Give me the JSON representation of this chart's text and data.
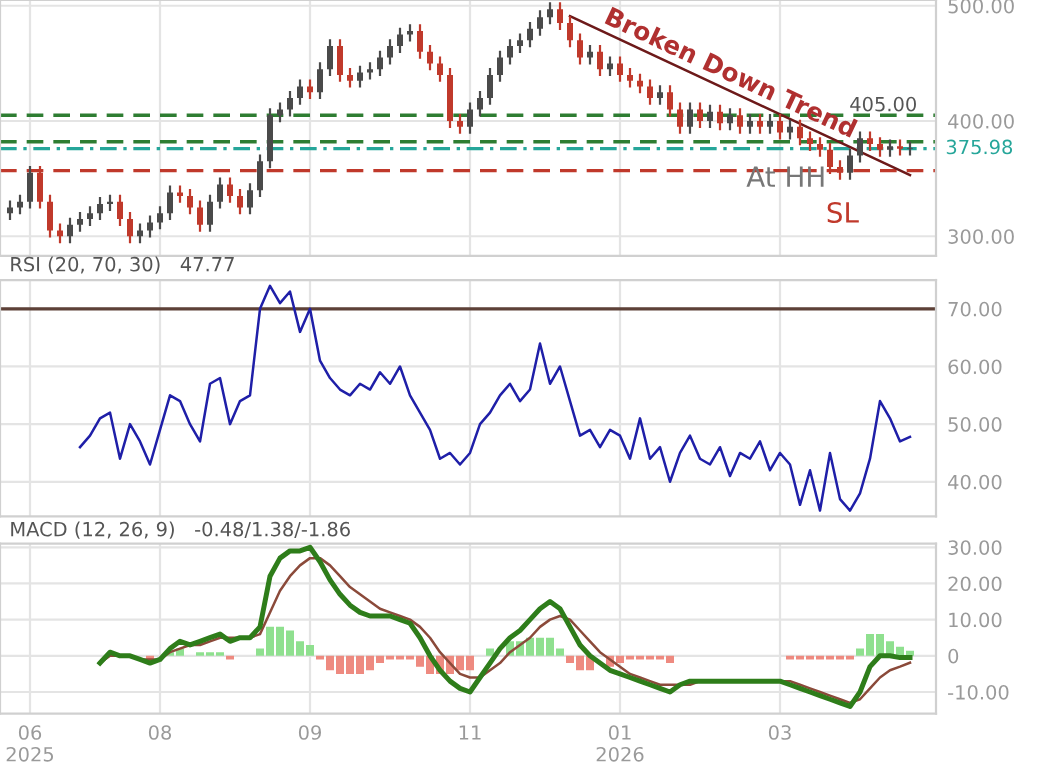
{
  "chart_data": [
    {
      "type": "candlestick",
      "categories": [
        null,
        null,
        null,
        null,
        null,
        null,
        null,
        null,
        null,
        null,
        null,
        null,
        null,
        null,
        null,
        null,
        null,
        null,
        null,
        null,
        null,
        null,
        null,
        null,
        null,
        null,
        null,
        null,
        null,
        null,
        null,
        null,
        null,
        null,
        null,
        null,
        null,
        null,
        null,
        null,
        null,
        null,
        null,
        null,
        null,
        null,
        null,
        null,
        null,
        null,
        null,
        null,
        null,
        null,
        null,
        null,
        null,
        null,
        null,
        null,
        null,
        null,
        null,
        null,
        null,
        null,
        null,
        null,
        null,
        null,
        null,
        null,
        null,
        null,
        null,
        null,
        null,
        null,
        null,
        null,
        null,
        null,
        null,
        null,
        null,
        null,
        null,
        null,
        null,
        null,
        null
      ],
      "ohlc": [
        [
          320,
          331,
          314,
          325
        ],
        [
          325,
          336,
          319,
          330
        ],
        [
          330,
          361,
          324,
          355
        ],
        [
          355,
          361,
          324,
          330
        ],
        [
          330,
          336,
          299,
          305
        ],
        [
          305,
          311,
          294,
          300
        ],
        [
          300,
          316,
          294,
          310
        ],
        [
          310,
          321,
          304,
          315
        ],
        [
          315,
          326,
          309,
          320
        ],
        [
          320,
          334,
          314,
          328
        ],
        [
          328,
          336,
          322,
          330
        ],
        [
          330,
          336,
          309,
          315
        ],
        [
          315,
          321,
          294,
          300
        ],
        [
          300,
          311,
          294,
          305
        ],
        [
          305,
          318,
          299,
          312
        ],
        [
          312,
          326,
          306,
          320
        ],
        [
          320,
          344,
          314,
          338
        ],
        [
          338,
          344,
          329,
          335
        ],
        [
          335,
          341,
          319,
          325
        ],
        [
          325,
          331,
          304,
          310
        ],
        [
          310,
          336,
          304,
          330
        ],
        [
          330,
          351,
          324,
          345
        ],
        [
          345,
          351,
          329,
          335
        ],
        [
          335,
          341,
          319,
          325
        ],
        [
          325,
          346,
          319,
          340
        ],
        [
          340,
          371,
          334,
          365
        ],
        [
          365,
          411,
          359,
          405
        ],
        [
          405,
          416,
          399,
          410
        ],
        [
          410,
          426,
          404,
          420
        ],
        [
          420,
          436,
          414,
          430
        ],
        [
          430,
          436,
          419,
          425
        ],
        [
          425,
          451,
          419,
          445
        ],
        [
          445,
          471,
          439,
          465
        ],
        [
          465,
          471,
          434,
          440
        ],
        [
          440,
          446,
          429,
          435
        ],
        [
          435,
          448,
          429,
          442
        ],
        [
          442,
          451,
          436,
          445
        ],
        [
          445,
          461,
          439,
          455
        ],
        [
          455,
          471,
          449,
          465
        ],
        [
          465,
          481,
          459,
          475
        ],
        [
          475,
          484,
          469,
          478
        ],
        [
          478,
          484,
          454,
          460
        ],
        [
          460,
          466,
          444,
          450
        ],
        [
          450,
          456,
          434,
          440
        ],
        [
          440,
          446,
          394,
          400
        ],
        [
          400,
          406,
          389,
          395
        ],
        [
          395,
          416,
          389,
          410
        ],
        [
          410,
          426,
          404,
          420
        ],
        [
          420,
          446,
          414,
          440
        ],
        [
          440,
          461,
          434,
          455
        ],
        [
          455,
          471,
          449,
          465
        ],
        [
          465,
          476,
          459,
          470
        ],
        [
          470,
          486,
          464,
          480
        ],
        [
          480,
          496,
          474,
          490
        ],
        [
          490,
          503,
          484,
          497
        ],
        [
          497,
          503,
          479,
          485
        ],
        [
          485,
          491,
          464,
          470
        ],
        [
          470,
          476,
          449,
          455
        ],
        [
          455,
          466,
          449,
          460
        ],
        [
          460,
          466,
          439,
          445
        ],
        [
          445,
          456,
          439,
          450
        ],
        [
          450,
          456,
          434,
          440
        ],
        [
          440,
          446,
          429,
          435
        ],
        [
          435,
          441,
          424,
          430
        ],
        [
          430,
          436,
          414,
          420
        ],
        [
          420,
          431,
          414,
          425
        ],
        [
          425,
          431,
          404,
          410
        ],
        [
          410,
          416,
          389,
          395
        ],
        [
          395,
          416,
          389,
          410
        ],
        [
          410,
          416,
          394,
          400
        ],
        [
          400,
          414,
          394,
          408
        ],
        [
          408,
          414,
          392,
          398
        ],
        [
          398,
          411,
          392,
          405
        ],
        [
          405,
          411,
          389,
          395
        ],
        [
          395,
          406,
          389,
          400
        ],
        [
          400,
          406,
          389,
          395
        ],
        [
          395,
          406,
          389,
          400
        ],
        [
          400,
          406,
          384,
          390
        ],
        [
          390,
          401,
          384,
          395
        ],
        [
          395,
          401,
          379,
          385
        ],
        [
          385,
          391,
          374,
          380
        ],
        [
          380,
          386,
          369,
          375
        ],
        [
          375,
          381,
          354,
          360
        ],
        [
          360,
          366,
          349,
          355
        ],
        [
          355,
          376,
          349,
          370
        ],
        [
          370,
          391,
          364,
          385
        ],
        [
          385,
          391,
          374,
          380
        ],
        [
          380,
          386,
          369,
          375
        ],
        [
          375,
          384,
          369,
          378
        ],
        [
          378,
          384,
          370,
          376
        ],
        [
          376,
          382,
          370,
          376
        ]
      ],
      "colors": [
        "#4a4a4a",
        "#4a4a4a",
        "#4a4a4a",
        "#c0392b",
        "#c0392b",
        "#c0392b",
        "#4a4a4a",
        "#4a4a4a",
        "#4a4a4a",
        "#4a4a4a",
        "#4a4a4a",
        "#c0392b",
        "#c0392b",
        "#4a4a4a",
        "#4a4a4a",
        "#4a4a4a",
        "#4a4a4a",
        "#c0392b",
        "#c0392b",
        "#c0392b",
        "#4a4a4a",
        "#4a4a4a",
        "#c0392b",
        "#c0392b",
        "#4a4a4a",
        "#4a4a4a",
        "#4a4a4a",
        "#4a4a4a",
        "#4a4a4a",
        "#4a4a4a",
        "#c0392b",
        "#4a4a4a",
        "#4a4a4a",
        "#c0392b",
        "#c0392b",
        "#4a4a4a",
        "#4a4a4a",
        "#4a4a4a",
        "#4a4a4a",
        "#4a4a4a",
        "#4a4a4a",
        "#c0392b",
        "#c0392b",
        "#c0392b",
        "#c0392b",
        "#c0392b",
        "#4a4a4a",
        "#4a4a4a",
        "#4a4a4a",
        "#4a4a4a",
        "#4a4a4a",
        "#4a4a4a",
        "#4a4a4a",
        "#4a4a4a",
        "#4a4a4a",
        "#c0392b",
        "#c0392b",
        "#c0392b",
        "#4a4a4a",
        "#c0392b",
        "#4a4a4a",
        "#c0392b",
        "#c0392b",
        "#c0392b",
        "#c0392b",
        "#4a4a4a",
        "#c0392b",
        "#c0392b",
        "#4a4a4a",
        "#c0392b",
        "#4a4a4a",
        "#c0392b",
        "#4a4a4a",
        "#c0392b",
        "#4a4a4a",
        "#c0392b",
        "#4a4a4a",
        "#c0392b",
        "#4a4a4a",
        "#c0392b",
        "#c0392b",
        "#c0392b",
        "#c0392b",
        "#c0392b",
        "#4a4a4a",
        "#4a4a4a",
        "#c0392b",
        "#c0392b",
        "#4a4a4a",
        "#c0392b",
        "#4a4a4a"
      ],
      "series": [
        {
          "type": "line",
          "color": "#6d1a1a",
          "values": [
            null,
            null,
            null,
            null,
            null,
            null,
            null,
            null,
            null,
            null,
            null,
            null,
            null,
            null,
            null,
            null,
            null,
            null,
            null,
            null,
            null,
            null,
            null,
            null,
            null,
            null,
            null,
            null,
            null,
            null,
            null,
            null,
            null,
            null,
            null,
            null,
            null,
            null,
            null,
            null,
            null,
            null,
            null,
            null,
            null,
            null,
            null,
            null,
            null,
            null,
            null,
            null,
            null,
            null,
            null,
            null,
            491,
            null,
            null,
            null,
            null,
            null,
            null,
            null,
            null,
            null,
            null,
            null,
            null,
            null,
            null,
            null,
            null,
            null,
            null,
            null,
            null,
            null,
            null,
            null,
            null,
            null,
            null,
            null,
            null,
            null,
            null,
            null,
            null,
            null,
            353
          ]
        }
      ],
      "ylim": [
        283,
        505
      ],
      "yticks": [
        {
          "value": 300,
          "label": "300.00"
        },
        {
          "value": 400,
          "label": "400.00"
        },
        {
          "value": 500,
          "label": "500.00"
        }
      ],
      "ref_lines": [
        {
          "axis": "y",
          "value": 405,
          "label": "405.00",
          "color": "#2e7d32",
          "line_style": "dashed"
        },
        {
          "axis": "y",
          "value": 382,
          "color": "#2e7d32",
          "line_style": "dashed"
        },
        {
          "axis": "y",
          "value": 375.98,
          "label": "375.98",
          "color": "#26a69a",
          "line_style": "dotted"
        },
        {
          "axis": "y",
          "value": 357,
          "color": "#c0392b",
          "line_style": "dashed"
        }
      ],
      "annotations": [
        "Broken Down Trend",
        "At HH",
        "SL"
      ],
      "grid": true,
      "tick_labels": "y"
    },
    {
      "type": "line",
      "title": "RSI (20, 70, 30)   47.77",
      "categories": [
        null,
        null,
        null,
        null,
        null,
        null,
        null,
        null,
        null,
        null,
        null,
        null,
        null,
        null,
        null,
        null,
        null,
        null,
        null,
        null,
        null,
        null,
        null,
        null,
        null,
        null,
        null,
        null,
        null,
        null,
        null,
        null,
        null,
        null,
        null,
        null,
        null,
        null,
        null,
        null,
        null,
        null,
        null,
        null,
        null,
        null,
        null,
        null,
        null,
        null,
        null,
        null,
        null,
        null,
        null,
        null,
        null,
        null,
        null,
        null,
        null,
        null,
        null,
        null,
        null,
        null,
        null,
        null,
        null,
        null,
        null,
        null,
        null,
        null,
        null,
        null,
        null,
        null,
        null,
        null,
        null,
        null,
        null,
        null,
        null,
        null,
        null,
        null,
        null,
        null,
        null
      ],
      "series": [
        {
          "color": "#1f1fa8",
          "values": [
            null,
            null,
            null,
            null,
            null,
            null,
            null,
            46,
            48,
            51,
            52,
            44,
            50,
            47,
            43,
            49,
            55,
            54,
            50,
            47,
            57,
            58,
            50,
            54,
            55,
            70,
            74,
            71,
            73,
            66,
            70,
            61,
            58,
            56,
            55,
            57,
            56,
            59,
            57,
            60,
            55,
            52,
            49,
            44,
            45,
            43,
            45,
            50,
            52,
            55,
            57,
            54,
            56,
            64,
            57,
            60,
            54,
            48,
            49,
            46,
            49,
            48,
            44,
            51,
            44,
            46,
            40,
            45,
            48,
            44,
            43,
            46,
            41,
            45,
            44,
            47,
            42,
            45,
            43,
            36,
            42,
            35,
            45,
            37,
            35,
            38,
            44,
            54,
            51,
            47,
            47.8
          ]
        }
      ],
      "ylim": [
        34,
        75
      ],
      "yticks": [
        {
          "value": 40,
          "label": "40.00"
        },
        {
          "value": 50,
          "label": "50.00"
        },
        {
          "value": 60,
          "label": "60.00"
        },
        {
          "value": 70,
          "label": "70.00"
        }
      ],
      "ref_lines": [
        {
          "axis": "y",
          "value": 70,
          "color": "#5d4037",
          "line_style": "solid"
        }
      ],
      "grid": true,
      "tick_labels": "y"
    },
    {
      "type": "line",
      "title": "MACD (12, 26, 9)   -0.48/1.38/-1.86",
      "categories": [
        null,
        null,
        "06\n2025",
        null,
        null,
        null,
        null,
        null,
        null,
        null,
        null,
        null,
        null,
        null,
        null,
        "08",
        null,
        null,
        null,
        null,
        null,
        null,
        null,
        null,
        null,
        null,
        null,
        null,
        null,
        null,
        "09",
        null,
        null,
        null,
        null,
        null,
        null,
        null,
        null,
        null,
        null,
        null,
        null,
        null,
        null,
        null,
        "11",
        null,
        null,
        null,
        null,
        null,
        null,
        null,
        null,
        null,
        null,
        null,
        null,
        null,
        null,
        "01\n2026",
        null,
        null,
        null,
        null,
        null,
        null,
        null,
        null,
        null,
        null,
        null,
        null,
        null,
        null,
        null,
        "03",
        null,
        null,
        null,
        null,
        null,
        null,
        null,
        null,
        null,
        null,
        null,
        null,
        null
      ],
      "series": [
        {
          "type": "bar",
          "color": "#8fe08f",
          "values": [
            null,
            null,
            null,
            null,
            null,
            null,
            null,
            null,
            null,
            null,
            null,
            null,
            null,
            null,
            null,
            null,
            1,
            2,
            null,
            1,
            1,
            1,
            null,
            null,
            null,
            2,
            8,
            8,
            7,
            4,
            3,
            null,
            null,
            null,
            null,
            null,
            null,
            null,
            null,
            null,
            null,
            null,
            null,
            null,
            null,
            null,
            null,
            null,
            2,
            null,
            4,
            4,
            5,
            5,
            5,
            2,
            null,
            null,
            null,
            null,
            null,
            null,
            null,
            null,
            null,
            null,
            null,
            null,
            null,
            null,
            null,
            null,
            null,
            null,
            null,
            null,
            null,
            null,
            null,
            null,
            null,
            null,
            null,
            null,
            null,
            2,
            6,
            6,
            4,
            2.5,
            1.4
          ]
        },
        {
          "type": "bar",
          "color": "#ee8a80",
          "values": [
            null,
            null,
            null,
            null,
            null,
            null,
            null,
            null,
            null,
            null,
            null,
            null,
            null,
            null,
            -1,
            null,
            null,
            null,
            null,
            null,
            null,
            null,
            -1,
            null,
            null,
            null,
            null,
            null,
            null,
            null,
            null,
            -1,
            -4,
            -5,
            -5,
            -5,
            -4,
            -2,
            -1,
            -1,
            -1,
            -3,
            -5,
            -5,
            -5,
            -4,
            -4,
            null,
            null,
            null,
            null,
            null,
            null,
            null,
            null,
            null,
            -2,
            -4,
            -4,
            null,
            -3,
            -2,
            -1,
            -1,
            -1,
            -1,
            -2,
            null,
            null,
            null,
            null,
            null,
            null,
            null,
            null,
            null,
            null,
            null,
            -1,
            -1,
            -1,
            -1,
            -1,
            -1,
            -1,
            null,
            null,
            null,
            null,
            null,
            null
          ]
        },
        {
          "type": "line",
          "color": "#8b4a3a",
          "values": [
            null,
            null,
            null,
            null,
            null,
            null,
            null,
            null,
            null,
            -2,
            0,
            0,
            0,
            -1,
            -1,
            -1,
            1,
            2,
            3,
            3,
            4,
            5,
            5,
            5,
            5,
            6,
            12,
            18,
            22,
            25,
            27,
            27,
            25,
            22,
            19,
            17,
            15,
            13,
            12,
            11,
            10,
            8,
            5,
            1,
            -2,
            -5,
            -6,
            -6,
            -4,
            -2,
            1,
            3,
            5,
            8,
            10,
            11,
            10,
            7,
            4,
            1,
            -1,
            -3,
            -5,
            -6,
            -7,
            -8,
            -8,
            -8,
            -8,
            -7,
            -7,
            -7,
            -7,
            -7,
            -7,
            -7,
            -7,
            -7,
            -7,
            -8,
            -9,
            -10,
            -11,
            -12,
            -13,
            -12,
            -9,
            -6,
            -4,
            -3,
            -1.9
          ]
        },
        {
          "type": "line",
          "color": "#2e7d1a",
          "values": [
            null,
            null,
            null,
            null,
            null,
            null,
            null,
            null,
            null,
            -2,
            1,
            0,
            0,
            -1,
            -2,
            -1,
            2,
            4,
            3,
            4,
            5,
            6,
            4,
            5,
            5,
            8,
            22,
            27,
            29,
            29,
            30,
            26,
            21,
            17,
            14,
            12,
            11,
            11,
            11,
            10,
            9,
            5,
            0,
            -4,
            -7,
            -9,
            -10,
            -6,
            -2,
            2,
            5,
            7,
            10,
            13,
            15,
            13,
            8,
            3,
            0,
            -2,
            -4,
            -5,
            -6,
            -7,
            -8,
            -9,
            -10,
            -8,
            -7,
            -7,
            -7,
            -7,
            -7,
            -7,
            -7,
            -7,
            -7,
            -7,
            -8,
            -9,
            -10,
            -11,
            -12,
            -13,
            -14,
            -10,
            -3,
            0,
            0,
            -0.5,
            -0.5
          ]
        }
      ],
      "ylim": [
        -16,
        31
      ],
      "yticks": [
        {
          "value": -10,
          "label": "-10.00"
        },
        {
          "value": 0,
          "label": "0"
        },
        {
          "value": 10,
          "label": "10.00"
        },
        {
          "value": 20,
          "label": "20.00"
        },
        {
          "value": 30,
          "label": "30.00"
        }
      ],
      "grid": true
    }
  ]
}
